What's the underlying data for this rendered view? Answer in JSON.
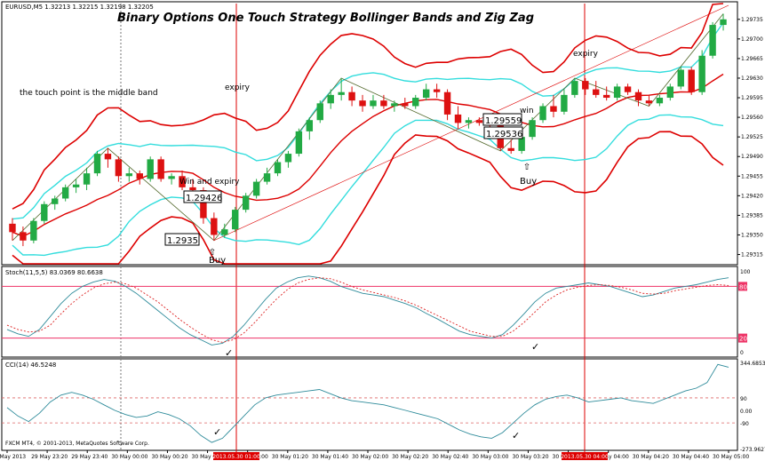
{
  "title": "Binary Options One Touch Strategy Bollinger Bands and Zig Zag",
  "symbol_header": "EURUSD,M5 1.32213 1.32215 1.32198 1.32205",
  "annotations": {
    "touch_point": "the touch point is the middle band",
    "expiry_1": "expiry",
    "expiry_2": "expiry",
    "win_and_expiry": "Win and expiry",
    "win": "win",
    "buy_1": "Buy",
    "buy_2": "Buy",
    "box_1": "1.29426",
    "box_2": "1.2935",
    "box_3": "1.29559",
    "box_4": "1.29536"
  },
  "price_axis": [
    "1.29735",
    "1.29700",
    "1.29665",
    "1.29630",
    "1.29595",
    "1.29560",
    "1.29525",
    "1.29490",
    "1.29455",
    "1.29420",
    "1.29385",
    "1.29350",
    "1.29315"
  ],
  "stoch": {
    "label": "Stoch(11,5,5) 83.0369 80.6638",
    "axis": [
      "100",
      "0"
    ],
    "levels": [
      "80",
      "20"
    ]
  },
  "cci": {
    "label": "CCI(14) 46.5248",
    "axis": [
      "344.6853",
      "90",
      "0.00",
      "-90",
      "-273.9627"
    ]
  },
  "copyright": "FXCM MT4, © 2001-2013, MetaQuotes Software Corp.",
  "time_axis": [
    "29 May 2013",
    "29 May 23:20",
    "29 May 23:40",
    "30 May 00:00",
    "30 May 00:20",
    "30 May 00:40",
    "30 May 01:00",
    "30 May 01:20",
    "30 May 01:40",
    "30 May 02:00",
    "30 May 02:20",
    "30 May 02:40",
    "30 May 03:00",
    "30 May 03:20",
    "30 May 03:40",
    "30 May 04:00",
    "30 May 04:20",
    "30 May 04:40",
    "30 May 05:00"
  ],
  "time_markers": [
    "2013.05.30 01:00",
    "2013.05.30 04:00"
  ],
  "colors": {
    "bull": "#22aa44",
    "bear": "#dd1111",
    "outer_band": "#dd0000",
    "inner_band": "#33dddd",
    "level": "#ee3366"
  },
  "chart_data": {
    "type": "candlestick",
    "candles_ohlc": [
      [
        1.2937,
        1.2938,
        1.2934,
        1.29355
      ],
      [
        1.29355,
        1.29365,
        1.2933,
        1.2934
      ],
      [
        1.2934,
        1.2938,
        1.29335,
        1.29375
      ],
      [
        1.29375,
        1.2941,
        1.2937,
        1.29405
      ],
      [
        1.29405,
        1.2942,
        1.29395,
        1.29415
      ],
      [
        1.29415,
        1.2944,
        1.2941,
        1.29435
      ],
      [
        1.29435,
        1.2945,
        1.29425,
        1.2944
      ],
      [
        1.2944,
        1.2947,
        1.2943,
        1.2946
      ],
      [
        1.2946,
        1.295,
        1.29455,
        1.29495
      ],
      [
        1.29495,
        1.29505,
        1.2947,
        1.29485
      ],
      [
        1.29485,
        1.2949,
        1.29445,
        1.29455
      ],
      [
        1.29455,
        1.2947,
        1.29445,
        1.2946
      ],
      [
        1.2946,
        1.29465,
        1.2944,
        1.2945
      ],
      [
        1.2945,
        1.2949,
        1.29445,
        1.29485
      ],
      [
        1.29485,
        1.2949,
        1.29445,
        1.2945
      ],
      [
        1.2945,
        1.2946,
        1.2944,
        1.29455
      ],
      [
        1.29455,
        1.29465,
        1.2943,
        1.29435
      ],
      [
        1.29435,
        1.2945,
        1.29425,
        1.2943
      ],
      [
        1.2943,
        1.29435,
        1.2937,
        1.2938
      ],
      [
        1.2938,
        1.2939,
        1.2934,
        1.2935
      ],
      [
        1.2935,
        1.2937,
        1.29345,
        1.2936
      ],
      [
        1.2936,
        1.294,
        1.29355,
        1.29395
      ],
      [
        1.29395,
        1.29425,
        1.2939,
        1.2942
      ],
      [
        1.2942,
        1.2945,
        1.29415,
        1.29445
      ],
      [
        1.29445,
        1.2947,
        1.2944,
        1.2946
      ],
      [
        1.2946,
        1.29485,
        1.29455,
        1.2948
      ],
      [
        1.2948,
        1.295,
        1.2947,
        1.29495
      ],
      [
        1.29495,
        1.2954,
        1.2949,
        1.29535
      ],
      [
        1.29535,
        1.2956,
        1.2952,
        1.29555
      ],
      [
        1.29555,
        1.2959,
        1.2955,
        1.29585
      ],
      [
        1.29585,
        1.2961,
        1.29575,
        1.296
      ],
      [
        1.296,
        1.2963,
        1.2959,
        1.29605
      ],
      [
        1.29605,
        1.29615,
        1.2958,
        1.2959
      ],
      [
        1.2959,
        1.296,
        1.2957,
        1.2958
      ],
      [
        1.2958,
        1.296,
        1.29575,
        1.2959
      ],
      [
        1.2959,
        1.296,
        1.29575,
        1.2958
      ],
      [
        1.2958,
        1.2959,
        1.2957,
        1.29585
      ],
      [
        1.29585,
        1.29595,
        1.29575,
        1.2958
      ],
      [
        1.2958,
        1.296,
        1.29575,
        1.29595
      ],
      [
        1.29595,
        1.2962,
        1.2959,
        1.2961
      ],
      [
        1.2961,
        1.2962,
        1.29595,
        1.29605
      ],
      [
        1.29605,
        1.2961,
        1.29555,
        1.29565
      ],
      [
        1.29565,
        1.2958,
        1.2954,
        1.2955
      ],
      [
        1.2955,
        1.2956,
        1.2954,
        1.29555
      ],
      [
        1.29555,
        1.2956,
        1.29545,
        1.2955
      ],
      [
        1.2955,
        1.2956,
        1.29535,
        1.29545
      ],
      [
        1.29545,
        1.2955,
        1.295,
        1.29505
      ],
      [
        1.29505,
        1.2952,
        1.29495,
        1.295
      ],
      [
        1.295,
        1.2953,
        1.29495,
        1.29525
      ],
      [
        1.29525,
        1.2956,
        1.2952,
        1.29555
      ],
      [
        1.29555,
        1.29585,
        1.2955,
        1.2958
      ],
      [
        1.2958,
        1.296,
        1.2956,
        1.2957
      ],
      [
        1.2957,
        1.2961,
        1.29565,
        1.296
      ],
      [
        1.296,
        1.2963,
        1.29595,
        1.29625
      ],
      [
        1.29625,
        1.2963,
        1.296,
        1.2961
      ],
      [
        1.2961,
        1.29625,
        1.29595,
        1.296
      ],
      [
        1.296,
        1.29615,
        1.2959,
        1.29595
      ],
      [
        1.29595,
        1.2962,
        1.2959,
        1.29615
      ],
      [
        1.29615,
        1.2962,
        1.296,
        1.29605
      ],
      [
        1.29605,
        1.2961,
        1.2958,
        1.2959
      ],
      [
        1.2959,
        1.296,
        1.2958,
        1.29585
      ],
      [
        1.29585,
        1.296,
        1.2958,
        1.29595
      ],
      [
        1.29595,
        1.2962,
        1.2959,
        1.29615
      ],
      [
        1.29615,
        1.2965,
        1.2961,
        1.29645
      ],
      [
        1.29645,
        1.2965,
        1.296,
        1.29605
      ],
      [
        1.29605,
        1.2968,
        1.296,
        1.2967
      ],
      [
        1.2967,
        1.2973,
        1.29665,
        1.29725
      ],
      [
        1.29725,
        1.29745,
        1.29715,
        1.29735
      ]
    ],
    "stoch_main": [
      30,
      25,
      22,
      30,
      45,
      60,
      72,
      80,
      85,
      88,
      86,
      80,
      72,
      62,
      52,
      42,
      32,
      24,
      18,
      12,
      14,
      22,
      35,
      50,
      65,
      78,
      85,
      90,
      92,
      90,
      86,
      80,
      76,
      72,
      70,
      68,
      64,
      60,
      55,
      48,
      42,
      35,
      28,
      24,
      22,
      20,
      24,
      35,
      48,
      62,
      72,
      78,
      80,
      82,
      84,
      82,
      80,
      76,
      72,
      68,
      70,
      74,
      78,
      80,
      82,
      85,
      88,
      90
    ],
    "stoch_signal": [
      35,
      30,
      27,
      28,
      35,
      48,
      60,
      70,
      78,
      83,
      85,
      83,
      78,
      70,
      62,
      52,
      42,
      33,
      25,
      18,
      15,
      18,
      26,
      38,
      52,
      65,
      76,
      84,
      88,
      90,
      89,
      85,
      80,
      76,
      73,
      70,
      67,
      63,
      58,
      52,
      46,
      40,
      34,
      28,
      25,
      22,
      22,
      28,
      38,
      50,
      62,
      70,
      76,
      79,
      81,
      82,
      81,
      79,
      76,
      72,
      71,
      72,
      75,
      77,
      79,
      81,
      82,
      81
    ],
    "cci": [
      20,
      -40,
      -80,
      -20,
      60,
      110,
      130,
      110,
      80,
      40,
      0,
      -30,
      -50,
      -40,
      -10,
      -30,
      -60,
      -110,
      -180,
      -230,
      -200,
      -120,
      -40,
      40,
      90,
      110,
      120,
      130,
      140,
      150,
      120,
      90,
      70,
      60,
      50,
      40,
      20,
      0,
      -20,
      -40,
      -60,
      -100,
      -140,
      -170,
      -190,
      -200,
      -160,
      -90,
      -20,
      40,
      80,
      100,
      110,
      90,
      60,
      70,
      80,
      90,
      70,
      60,
      50,
      80,
      110,
      140,
      160,
      200,
      330,
      310
    ],
    "ylim_price": [
      1.293,
      1.2976
    ],
    "ylim_stoch": [
      0,
      100
    ],
    "ylim_cci": [
      -273.9627,
      344.6853
    ]
  }
}
